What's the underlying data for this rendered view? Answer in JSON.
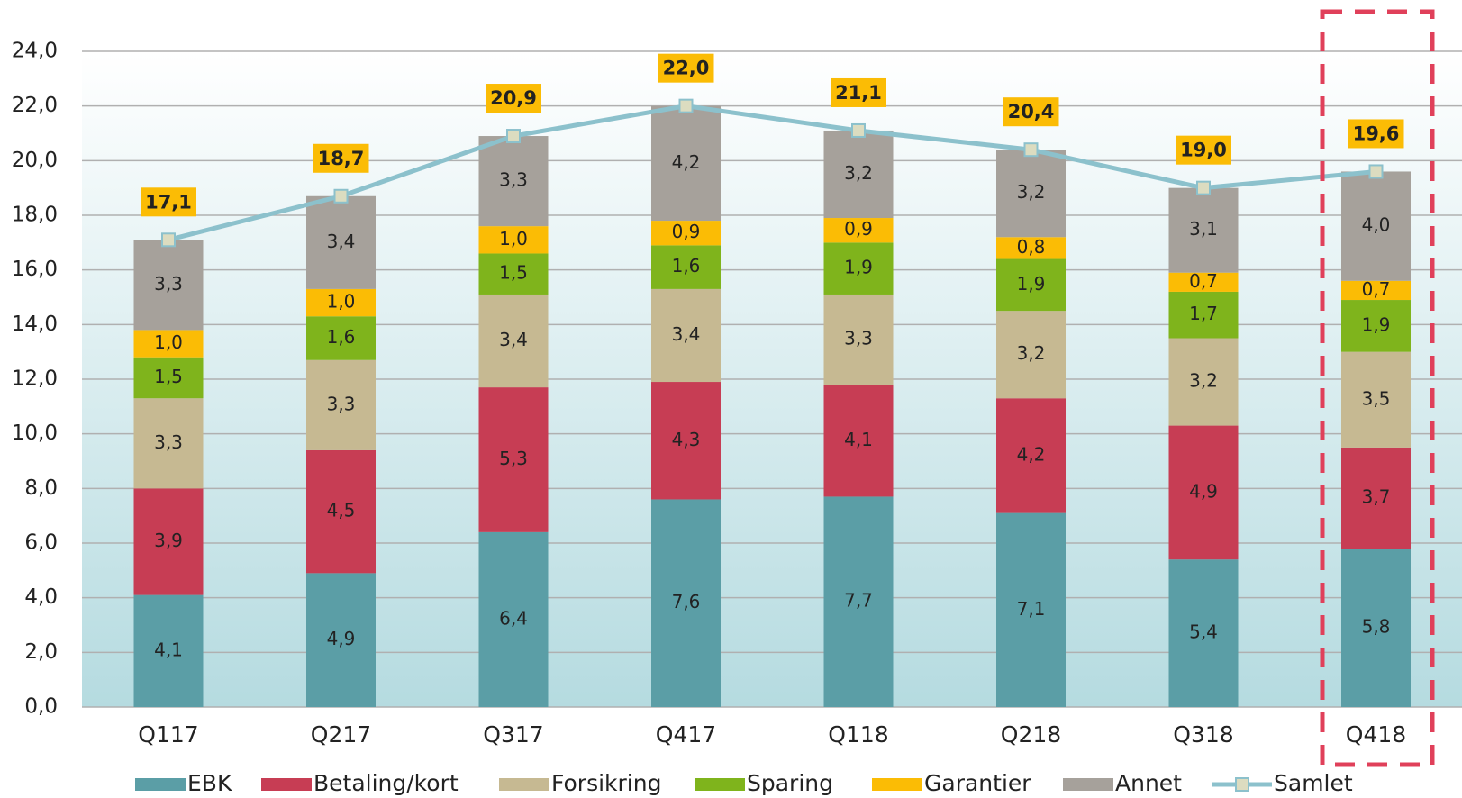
{
  "chart_data": {
    "type": "stacked_bar_line",
    "categories": [
      "Q117",
      "Q217",
      "Q317",
      "Q417",
      "Q118",
      "Q218",
      "Q318",
      "Q418"
    ],
    "series": [
      {
        "name": "EBK",
        "color": "#5b9ea6",
        "values": [
          4.1,
          4.9,
          6.4,
          7.6,
          7.7,
          7.1,
          5.4,
          5.8
        ],
        "value_labels": [
          "4,1",
          "4,9",
          "6,4",
          "7,6",
          "7,7",
          "7,1",
          "5,4",
          "5,8"
        ]
      },
      {
        "name": "Betaling/kort",
        "color": "#c73d54",
        "values": [
          3.9,
          4.5,
          5.3,
          4.3,
          4.1,
          4.2,
          4.9,
          3.7
        ],
        "value_labels": [
          "3,9",
          "4,5",
          "5,3",
          "4,3",
          "4,1",
          "4,2",
          "4,9",
          "3,7"
        ]
      },
      {
        "name": "Forsikring",
        "color": "#c6b992",
        "values": [
          3.3,
          3.3,
          3.4,
          3.4,
          3.3,
          3.2,
          3.2,
          3.5
        ],
        "value_labels": [
          "3,3",
          "3,3",
          "3,4",
          "3,4",
          "3,3",
          "3,2",
          "3,2",
          "3,5"
        ]
      },
      {
        "name": "Sparing",
        "color": "#7fb41c",
        "values": [
          1.5,
          1.6,
          1.5,
          1.6,
          1.9,
          1.9,
          1.7,
          1.9
        ],
        "value_labels": [
          "1,5",
          "1,6",
          "1,5",
          "1,6",
          "1,9",
          "1,9",
          "1,7",
          "1,9"
        ]
      },
      {
        "name": "Garantier",
        "color": "#fbbc05",
        "values": [
          1.0,
          1.0,
          1.0,
          0.9,
          0.9,
          0.8,
          0.7,
          0.7
        ],
        "value_labels": [
          "1,0",
          "1,0",
          "1,0",
          "0,9",
          "0,9",
          "0,8",
          "0,7",
          "0,7"
        ]
      },
      {
        "name": "Annet",
        "color": "#a6a19b",
        "values": [
          3.3,
          3.4,
          3.3,
          4.2,
          3.2,
          3.2,
          3.1,
          4.0
        ],
        "value_labels": [
          "3,3",
          "3,4",
          "3,3",
          "4,2",
          "3,2",
          "3,2",
          "3,1",
          "4,0"
        ]
      },
      {
        "name": "Samlet",
        "color": "#8cc1cc",
        "type": "line",
        "values": [
          17.1,
          18.7,
          20.9,
          22.0,
          21.1,
          20.4,
          19.0,
          19.6
        ],
        "value_labels": [
          "17,1",
          "18,7",
          "20,9",
          "22,0",
          "21,1",
          "20,4",
          "19,0",
          "19,6"
        ]
      }
    ],
    "ylim": [
      0,
      24
    ],
    "yticks": [
      {
        "value": 0,
        "label": "0,0"
      },
      {
        "value": 2,
        "label": "2,0"
      },
      {
        "value": 4,
        "label": "4,0"
      },
      {
        "value": 6,
        "label": "6,0"
      },
      {
        "value": 8,
        "label": "8,0"
      },
      {
        "value": 10,
        "label": "10,0"
      },
      {
        "value": 12,
        "label": "12,0"
      },
      {
        "value": 14,
        "label": "14,0"
      },
      {
        "value": 16,
        "label": "16,0"
      },
      {
        "value": 18,
        "label": "18,0"
      },
      {
        "value": 20,
        "label": "20,0"
      },
      {
        "value": 22,
        "label": "22,0"
      },
      {
        "value": 24,
        "label": "24,0"
      }
    ],
    "grid": true,
    "legend": "bottom"
  }
}
